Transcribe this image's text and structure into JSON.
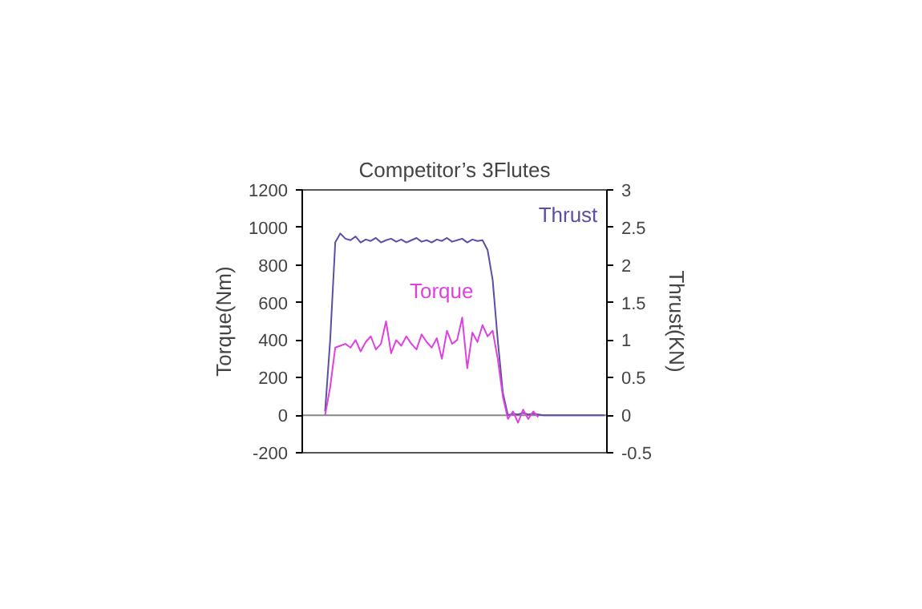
{
  "chart_data": {
    "type": "line",
    "title": "Competitor’s 3Flutes",
    "ylabel": "Torque(Nm)",
    "y2label": "Thrust(KN)",
    "categories": [
      null,
      null,
      null,
      null,
      null,
      null,
      null,
      null,
      null,
      null,
      null,
      null,
      null,
      null,
      null,
      null,
      null,
      null,
      null,
      null,
      null,
      null,
      null,
      null,
      null,
      null,
      null,
      null,
      null,
      null,
      null,
      null,
      null,
      null,
      null,
      null,
      null,
      null,
      null,
      null,
      null,
      null,
      null,
      null,
      null,
      null,
      null,
      null,
      null,
      null,
      null,
      null,
      null,
      null,
      null,
      null,
      null,
      null,
      null,
      null
    ],
    "series": [
      {
        "name": "Thrust",
        "color": "#5b4fa8",
        "axis": "y2",
        "values": [
          null,
          null,
          null,
          null,
          0.05,
          1.0,
          2.3,
          2.42,
          2.35,
          2.33,
          2.38,
          2.3,
          2.34,
          2.32,
          2.36,
          2.3,
          2.33,
          2.35,
          2.31,
          2.34,
          2.3,
          2.33,
          2.36,
          2.31,
          2.33,
          2.3,
          2.34,
          2.32,
          2.36,
          2.31,
          2.33,
          2.35,
          2.3,
          2.34,
          2.32,
          2.33,
          2.2,
          1.8,
          1.0,
          0.3,
          0.0,
          0.02,
          0.01,
          0.03,
          0.01,
          0.02,
          0.01,
          0,
          0,
          0,
          0,
          0,
          0,
          0,
          0,
          0,
          0,
          0,
          0,
          0
        ]
      },
      {
        "name": "Torque",
        "color": "#e040e0",
        "values": [
          null,
          null,
          null,
          null,
          0,
          150,
          360,
          370,
          380,
          360,
          400,
          340,
          390,
          420,
          350,
          380,
          500,
          330,
          400,
          370,
          420,
          380,
          350,
          430,
          390,
          360,
          410,
          300,
          450,
          380,
          400,
          520,
          250,
          440,
          390,
          480,
          420,
          450,
          300,
          100,
          -20,
          20,
          -40,
          30,
          -20,
          20,
          -10,
          null,
          null,
          null,
          null,
          null,
          null,
          null,
          null,
          null,
          null,
          null,
          null,
          null
        ]
      }
    ],
    "ylim": [
      -200,
      1200
    ],
    "yticks": [
      -200,
      0,
      200,
      400,
      600,
      800,
      1000,
      1200
    ],
    "y2lim": [
      -0.5,
      3
    ],
    "y2ticks": [
      -0.5,
      0,
      0.5,
      1,
      1.5,
      2,
      2.5,
      3
    ],
    "ref_lines": [
      {
        "axis": "y",
        "value": 0,
        "color": "#888888"
      }
    ],
    "grid": false
  }
}
